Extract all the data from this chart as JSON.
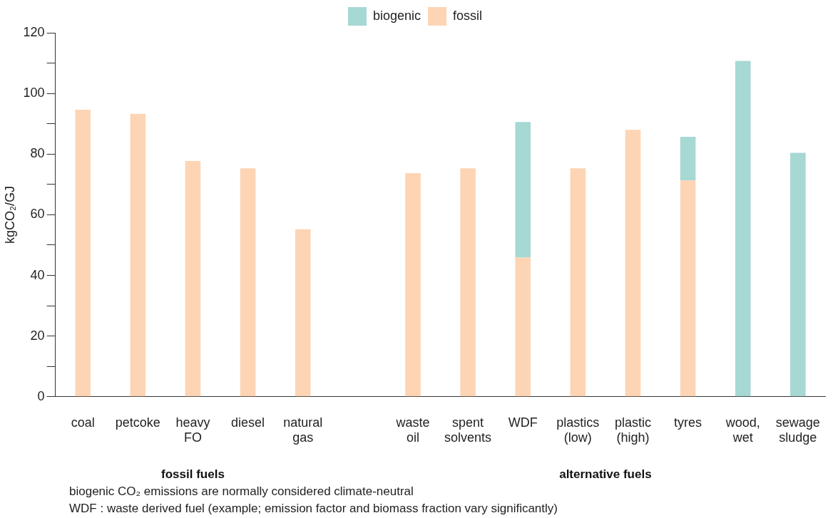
{
  "chart_data": {
    "type": "bar",
    "stacked": true,
    "ylabel": "kgCO₂/GJ",
    "categories": [
      "coal",
      "petcoke",
      "heavy FO",
      "diesel",
      "natural gas",
      null,
      "waste oil",
      "spent solvents",
      "WDF",
      "plastics (low)",
      "plastic (high)",
      "tyres",
      "wood, wet",
      "sewage sludge"
    ],
    "series": [
      {
        "name": "fossil",
        "color": "#fdd5b5",
        "values": [
          94.6,
          93.3,
          77.7,
          75.3,
          55.2,
          null,
          73.7,
          75.3,
          45.9,
          75.3,
          88,
          71.3,
          null,
          null
        ]
      },
      {
        "name": "biogenic",
        "color": "#a6d8d4",
        "values": [
          null,
          null,
          null,
          null,
          null,
          null,
          null,
          null,
          44.7,
          null,
          null,
          14.4,
          110.7,
          80.4
        ]
      }
    ],
    "ylim": [
      0,
      120
    ],
    "yticks": [
      0,
      {
        "value": 10,
        "label": null
      },
      20,
      {
        "value": 30,
        "label": null
      },
      40,
      {
        "value": 50,
        "label": null
      },
      60,
      {
        "value": 70,
        "label": null
      },
      80,
      {
        "value": 90,
        "label": null
      },
      100,
      {
        "value": 110,
        "label": null
      },
      120
    ],
    "grid": false,
    "legend": "top",
    "annotations": [
      "fossil fuels",
      "alternative fuels",
      "biogenic CO₂ emissions are normally considered climate-neutral",
      "WDF : waste derived fuel (example; emission factor and biomass fraction vary significantly)"
    ]
  }
}
